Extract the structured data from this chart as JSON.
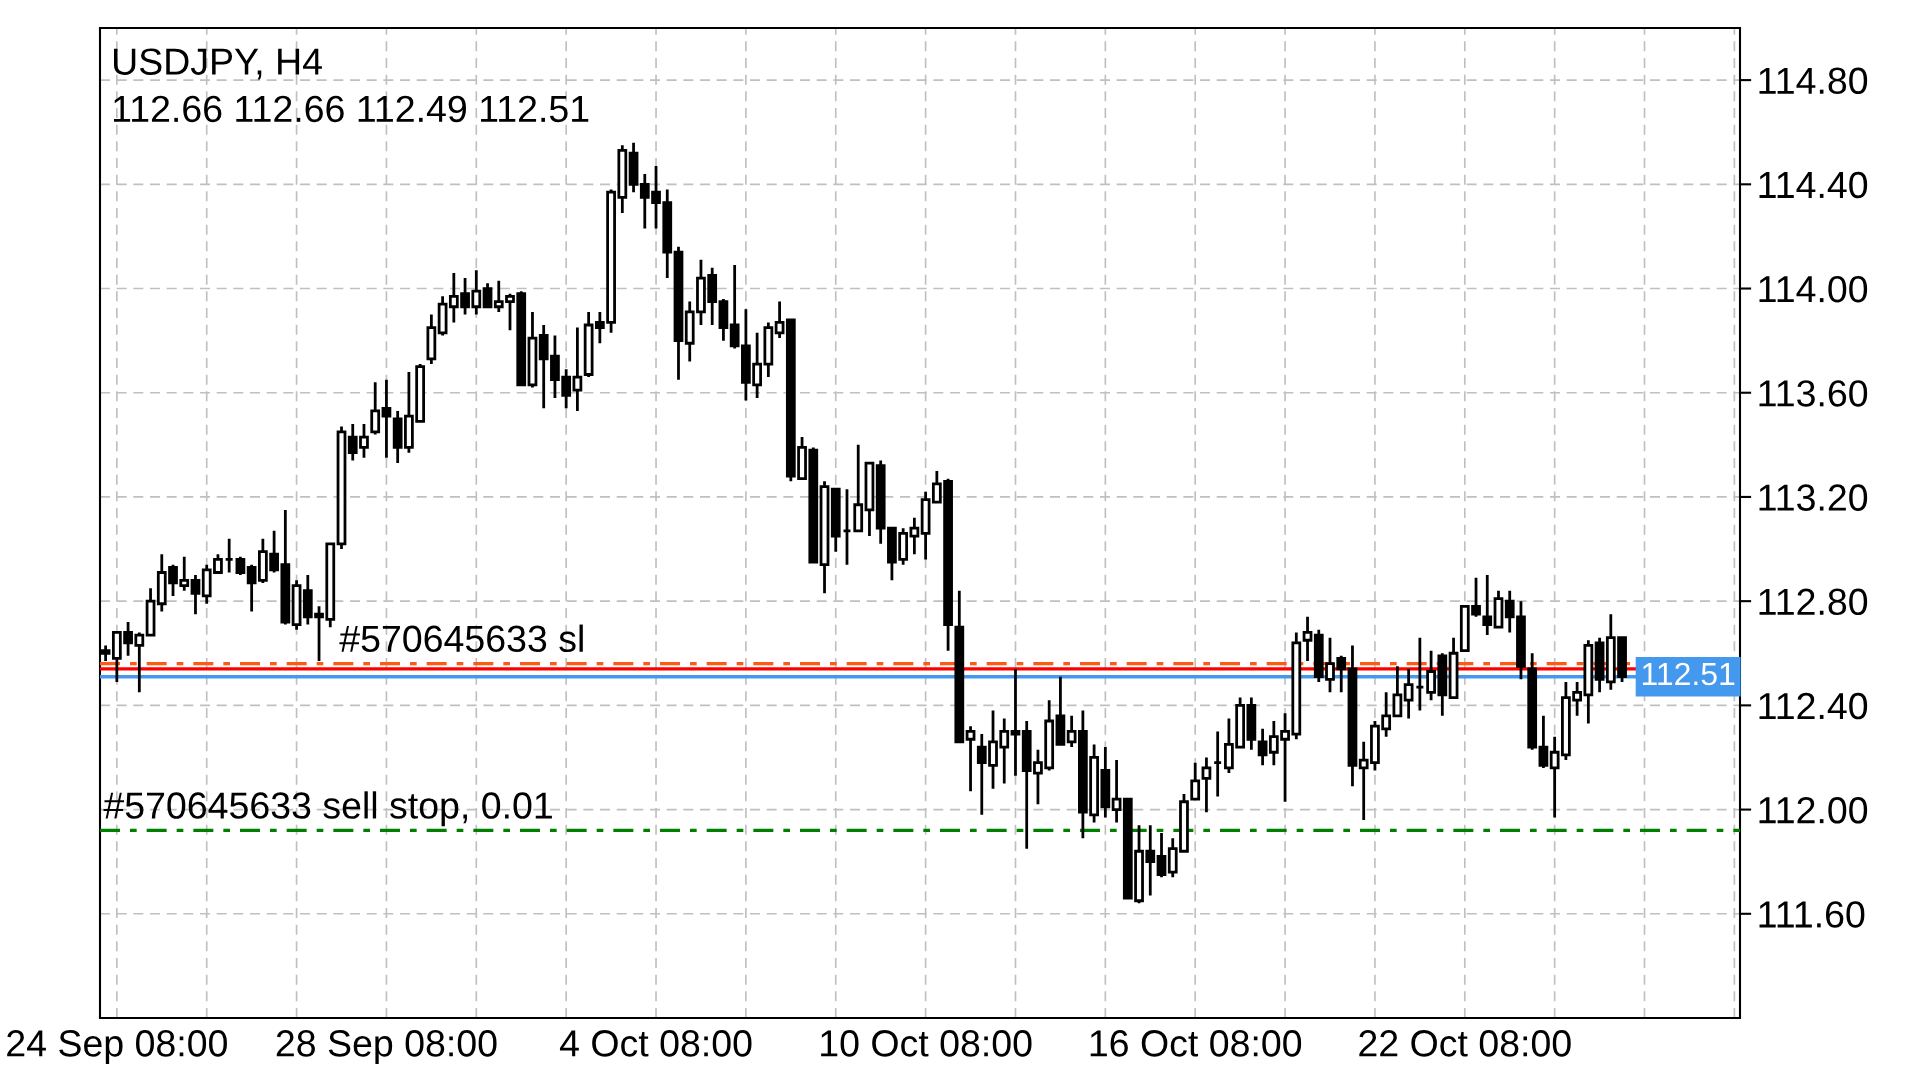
{
  "chart_data": {
    "type": "candlestick",
    "title": "USDJPY, H4",
    "subtitle": "112.66 112.66 112.49 112.51",
    "categories": [
      null,
      "24 Sep 08:00",
      null,
      null,
      null,
      null,
      null,
      null,
      null,
      null,
      null,
      null,
      null,
      null,
      null,
      null,
      null,
      null,
      null,
      null,
      null,
      null,
      null,
      null,
      null,
      "28 Sep 08:00",
      null,
      null,
      null,
      null,
      null,
      null,
      null,
      null,
      null,
      null,
      null,
      null,
      null,
      null,
      null,
      null,
      null,
      null,
      null,
      null,
      null,
      null,
      null,
      "4 Oct 08:00",
      null,
      null,
      null,
      null,
      null,
      null,
      null,
      null,
      null,
      null,
      null,
      null,
      null,
      null,
      null,
      null,
      null,
      null,
      null,
      null,
      null,
      null,
      null,
      "10 Oct 08:00",
      null,
      null,
      null,
      null,
      null,
      null,
      null,
      null,
      null,
      null,
      null,
      null,
      null,
      null,
      null,
      null,
      null,
      null,
      null,
      null,
      null,
      null,
      null,
      "16 Oct 08:00",
      null,
      null,
      null,
      null,
      null,
      null,
      null,
      null,
      null,
      null,
      null,
      null,
      null,
      null,
      null,
      null,
      null,
      null,
      null,
      null,
      null,
      null,
      null,
      "22 Oct 08:00",
      null,
      null,
      null,
      null,
      null,
      null,
      null,
      null,
      null,
      null,
      null,
      null,
      null,
      null,
      null,
      null,
      null,
      null,
      null,
      null,
      null,
      null,
      null,
      null
    ],
    "ohlc": [
      [
        112.61,
        112.63,
        112.57,
        112.6
      ],
      [
        112.58,
        112.68,
        112.49,
        112.68
      ],
      [
        112.68,
        112.72,
        112.59,
        112.64
      ],
      [
        112.63,
        112.68,
        112.45,
        112.67
      ],
      [
        112.67,
        112.85,
        112.67,
        112.8
      ],
      [
        112.79,
        112.98,
        112.76,
        112.91
      ],
      [
        112.93,
        112.94,
        112.82,
        112.87
      ],
      [
        112.86,
        112.97,
        112.84,
        112.88
      ],
      [
        112.88,
        112.9,
        112.75,
        112.83
      ],
      [
        112.82,
        112.94,
        112.79,
        112.92
      ],
      [
        112.91,
        112.98,
        112.91,
        112.96
      ],
      [
        112.96,
        113.04,
        112.91,
        112.96
      ],
      [
        112.96,
        112.97,
        112.9,
        112.91
      ],
      [
        112.93,
        112.94,
        112.76,
        112.87
      ],
      [
        112.88,
        113.04,
        112.87,
        112.99
      ],
      [
        112.98,
        113.07,
        112.91,
        112.92
      ],
      [
        112.94,
        113.15,
        112.71,
        112.72
      ],
      [
        112.71,
        112.88,
        112.69,
        112.86
      ],
      [
        112.84,
        112.9,
        112.71,
        112.74
      ],
      [
        112.75,
        112.78,
        112.57,
        112.74
      ],
      [
        112.73,
        113.02,
        112.7,
        113.02
      ],
      [
        113.02,
        113.47,
        113.0,
        113.45
      ],
      [
        113.43,
        113.48,
        113.34,
        113.37
      ],
      [
        113.39,
        113.48,
        113.35,
        113.43
      ],
      [
        113.45,
        113.64,
        113.44,
        113.53
      ],
      [
        113.54,
        113.65,
        113.35,
        113.51
      ],
      [
        113.5,
        113.53,
        113.33,
        113.39
      ],
      [
        113.39,
        113.68,
        113.37,
        113.51
      ],
      [
        113.49,
        113.71,
        113.49,
        113.7
      ],
      [
        113.73,
        113.9,
        113.71,
        113.85
      ],
      [
        113.83,
        113.97,
        113.82,
        113.94
      ],
      [
        113.93,
        114.06,
        113.87,
        113.97
      ],
      [
        113.98,
        114.04,
        113.9,
        113.93
      ],
      [
        113.93,
        114.07,
        113.9,
        113.99
      ],
      [
        114.0,
        114.02,
        113.93,
        113.93
      ],
      [
        113.93,
        114.03,
        113.91,
        113.95
      ],
      [
        113.95,
        113.98,
        113.84,
        113.97
      ],
      [
        113.98,
        113.99,
        113.63,
        113.63
      ],
      [
        113.63,
        113.91,
        113.62,
        113.81
      ],
      [
        113.82,
        113.86,
        113.54,
        113.73
      ],
      [
        113.74,
        113.82,
        113.58,
        113.65
      ],
      [
        113.66,
        113.69,
        113.54,
        113.59
      ],
      [
        113.61,
        113.85,
        113.53,
        113.66
      ],
      [
        113.67,
        113.91,
        113.66,
        113.86
      ],
      [
        113.87,
        113.91,
        113.79,
        113.85
      ],
      [
        113.87,
        114.38,
        113.83,
        114.37
      ],
      [
        114.35,
        114.55,
        114.29,
        114.53
      ],
      [
        114.52,
        114.56,
        114.37,
        114.4
      ],
      [
        114.4,
        114.44,
        114.23,
        114.35
      ],
      [
        114.37,
        114.47,
        114.23,
        114.33
      ],
      [
        114.33,
        114.38,
        114.04,
        114.14
      ],
      [
        114.14,
        114.16,
        113.65,
        113.8
      ],
      [
        113.79,
        113.95,
        113.72,
        113.91
      ],
      [
        113.91,
        114.11,
        113.86,
        114.04
      ],
      [
        114.05,
        114.08,
        113.86,
        113.95
      ],
      [
        113.95,
        113.96,
        113.8,
        113.85
      ],
      [
        113.86,
        114.09,
        113.77,
        113.78
      ],
      [
        113.78,
        113.92,
        113.57,
        113.64
      ],
      [
        113.63,
        113.83,
        113.58,
        113.71
      ],
      [
        113.71,
        113.87,
        113.66,
        113.85
      ],
      [
        113.83,
        113.95,
        113.81,
        113.87
      ],
      [
        113.88,
        113.88,
        113.26,
        113.28
      ],
      [
        113.27,
        113.43,
        113.27,
        113.39
      ],
      [
        113.38,
        113.39,
        112.95,
        112.95
      ],
      [
        112.94,
        113.26,
        112.83,
        113.24
      ],
      [
        113.23,
        113.23,
        112.99,
        113.05
      ],
      [
        113.07,
        113.23,
        112.94,
        113.07
      ],
      [
        113.07,
        113.4,
        113.07,
        113.17
      ],
      [
        113.15,
        113.33,
        113.05,
        113.33
      ],
      [
        113.32,
        113.34,
        113.02,
        113.08
      ],
      [
        113.08,
        113.08,
        112.88,
        112.95
      ],
      [
        112.96,
        113.08,
        112.94,
        113.06
      ],
      [
        113.05,
        113.12,
        112.98,
        113.08
      ],
      [
        113.06,
        113.22,
        112.96,
        113.19
      ],
      [
        113.18,
        113.3,
        113.18,
        113.25
      ],
      [
        113.26,
        113.27,
        112.61,
        112.71
      ],
      [
        112.7,
        112.84,
        112.26,
        112.26
      ],
      [
        112.27,
        112.32,
        112.07,
        112.3
      ],
      [
        112.24,
        112.29,
        111.98,
        112.18
      ],
      [
        112.17,
        112.38,
        112.08,
        112.26
      ],
      [
        112.24,
        112.35,
        112.1,
        112.3
      ],
      [
        112.3,
        112.54,
        112.13,
        112.29
      ],
      [
        112.3,
        112.34,
        111.85,
        112.15
      ],
      [
        112.14,
        112.23,
        112.02,
        112.18
      ],
      [
        112.16,
        112.42,
        112.15,
        112.34
      ],
      [
        112.36,
        112.51,
        112.25,
        112.25
      ],
      [
        112.26,
        112.36,
        112.24,
        112.3
      ],
      [
        112.3,
        112.38,
        111.89,
        111.99
      ],
      [
        111.98,
        112.25,
        111.95,
        112.2
      ],
      [
        112.15,
        112.24,
        111.97,
        112.01
      ],
      [
        112.0,
        112.19,
        111.95,
        112.04
      ],
      [
        112.04,
        112.04,
        111.66,
        111.66
      ],
      [
        111.65,
        111.94,
        111.64,
        111.84
      ],
      [
        111.84,
        111.94,
        111.67,
        111.8
      ],
      [
        111.82,
        111.91,
        111.74,
        111.75
      ],
      [
        111.76,
        111.89,
        111.74,
        111.85
      ],
      [
        111.84,
        112.06,
        111.84,
        112.03
      ],
      [
        112.04,
        112.18,
        112.04,
        112.11
      ],
      [
        112.12,
        112.2,
        111.99,
        112.16
      ],
      [
        112.18,
        112.3,
        112.05,
        112.18
      ],
      [
        112.16,
        112.35,
        112.14,
        112.25
      ],
      [
        112.24,
        112.43,
        112.24,
        112.4
      ],
      [
        112.4,
        112.43,
        112.23,
        112.27
      ],
      [
        112.26,
        112.31,
        112.17,
        112.21
      ],
      [
        112.22,
        112.34,
        112.17,
        112.28
      ],
      [
        112.27,
        112.37,
        112.03,
        112.3
      ],
      [
        112.29,
        112.68,
        112.27,
        112.64
      ],
      [
        112.65,
        112.74,
        112.57,
        112.68
      ],
      [
        112.67,
        112.69,
        112.49,
        112.51
      ],
      [
        112.5,
        112.66,
        112.45,
        112.56
      ],
      [
        112.58,
        112.59,
        112.45,
        112.54
      ],
      [
        112.54,
        112.63,
        112.09,
        112.17
      ],
      [
        112.16,
        112.26,
        111.96,
        112.19
      ],
      [
        112.18,
        112.34,
        112.15,
        112.32
      ],
      [
        112.31,
        112.45,
        112.28,
        112.36
      ],
      [
        112.36,
        112.55,
        112.36,
        112.44
      ],
      [
        112.42,
        112.54,
        112.35,
        112.48
      ],
      [
        112.47,
        112.66,
        112.38,
        112.47
      ],
      [
        112.45,
        112.61,
        112.42,
        112.53
      ],
      [
        112.59,
        112.6,
        112.36,
        112.44
      ],
      [
        112.43,
        112.66,
        112.43,
        112.6
      ],
      [
        112.61,
        112.78,
        112.61,
        112.78
      ],
      [
        112.78,
        112.89,
        112.74,
        112.75
      ],
      [
        112.74,
        112.9,
        112.67,
        112.71
      ],
      [
        112.7,
        112.84,
        112.7,
        112.81
      ],
      [
        112.8,
        112.84,
        112.68,
        112.74
      ],
      [
        112.74,
        112.8,
        112.5,
        112.55
      ],
      [
        112.54,
        112.6,
        112.23,
        112.24
      ],
      [
        112.24,
        112.36,
        112.16,
        112.17
      ],
      [
        112.16,
        112.28,
        111.97,
        112.22
      ],
      [
        112.21,
        112.49,
        112.19,
        112.43
      ],
      [
        112.42,
        112.49,
        112.36,
        112.45
      ],
      [
        112.44,
        112.65,
        112.33,
        112.63
      ],
      [
        112.64,
        112.66,
        112.45,
        112.5
      ],
      [
        112.49,
        112.75,
        112.46,
        112.66
      ],
      [
        112.66,
        112.66,
        112.49,
        112.51
      ],
      null,
      null,
      null,
      null,
      null,
      null,
      null,
      null,
      null,
      null
    ],
    "ylim": [
      111.2,
      115.0
    ],
    "yticks": [
      {
        "value": 111.6,
        "label": "111.60"
      },
      {
        "value": 112.0,
        "label": "112.00"
      },
      {
        "value": 112.4,
        "label": "112.40"
      },
      {
        "value": 112.8,
        "label": "112.80"
      },
      {
        "value": 113.2,
        "label": "113.20"
      },
      {
        "value": 113.6,
        "label": "113.60"
      },
      {
        "value": 114.0,
        "label": "114.00"
      },
      {
        "value": 114.4,
        "label": "114.40"
      },
      {
        "value": 114.8,
        "label": "114.80"
      }
    ],
    "grid": true,
    "ref_lines": [
      {
        "axis": "y",
        "value": 112.56,
        "label": "#570645633 sl",
        "color": "#ff5a14",
        "line_style": "dashdot"
      },
      {
        "axis": "y",
        "value": 112.54,
        "color": "#ff0000",
        "line_style": "solid"
      },
      {
        "axis": "y",
        "value": 112.51,
        "label": "112.51",
        "color": "#4499ee",
        "line_style": "solid"
      },
      {
        "axis": "y",
        "value": 111.92,
        "label": "#570645633 sell stop, 0.01",
        "color": "#008000",
        "line_style": "dashdot"
      }
    ]
  }
}
